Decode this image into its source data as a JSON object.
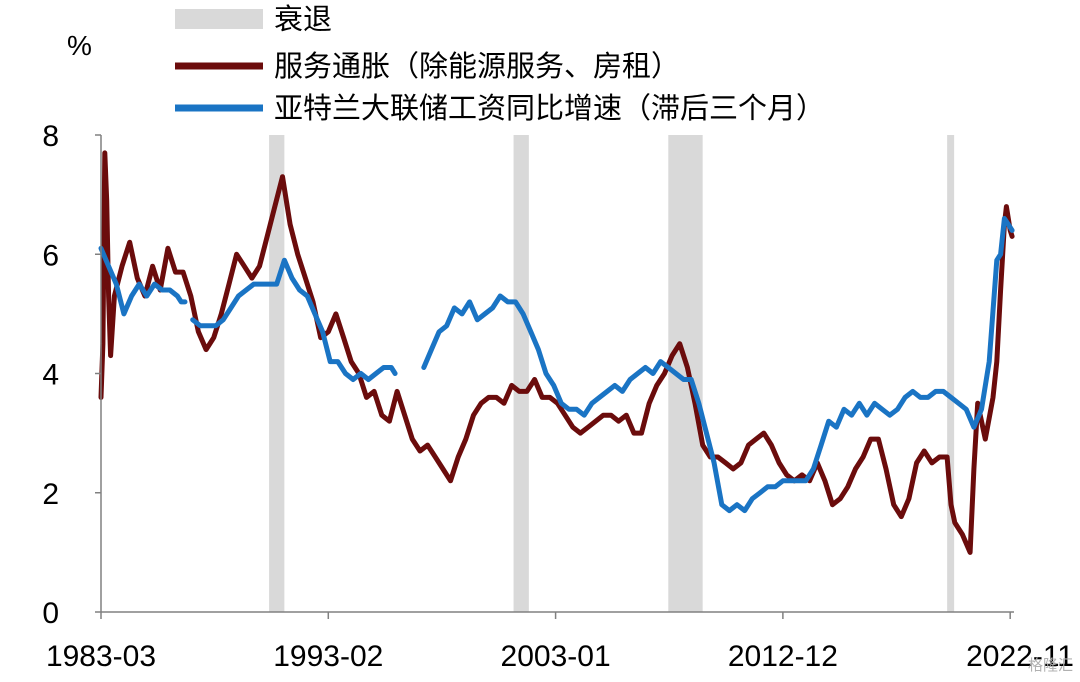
{
  "chart_data": {
    "type": "line",
    "ylabel": "%",
    "ylim": [
      0,
      8
    ],
    "yticks": [
      0,
      2,
      4,
      6,
      8
    ],
    "xlim": [
      "1983-03",
      "2023-01"
    ],
    "xticks": [
      "1983-03",
      "1993-02",
      "2003-01",
      "2012-12",
      "2022-11"
    ],
    "grid": false,
    "legend_position": "top",
    "legend": [
      {
        "key": "recession",
        "label": "衰退",
        "color": "#d9d9d9",
        "kind": "band"
      },
      {
        "key": "services",
        "label": "服务通胀（除能源服务、房租）",
        "color": "#6b0c0c",
        "kind": "line"
      },
      {
        "key": "wages",
        "label": "亚特兰大联储工资同比增速（滞后三个月）",
        "color": "#1a74c4",
        "kind": "line"
      }
    ],
    "recessions": [
      [
        "1990-07",
        "1991-03"
      ],
      [
        "2001-03",
        "2001-11"
      ],
      [
        "2007-12",
        "2009-06"
      ],
      [
        "2020-02",
        "2020-04"
      ]
    ],
    "series": [
      {
        "name": "服务通胀（除能源服务、房租）",
        "color": "#6b0c0c",
        "points": [
          [
            "1983-03",
            3.6
          ],
          [
            "1983-04",
            4.5
          ],
          [
            "1983-05",
            7.7
          ],
          [
            "1983-06",
            6.9
          ],
          [
            "1983-07",
            5.3
          ],
          [
            "1983-08",
            4.3
          ],
          [
            "1983-10",
            5.3
          ],
          [
            "1984-02",
            5.8
          ],
          [
            "1984-06",
            6.2
          ],
          [
            "1984-10",
            5.6
          ],
          [
            "1985-02",
            5.3
          ],
          [
            "1985-06",
            5.8
          ],
          [
            "1985-10",
            5.4
          ],
          [
            "1986-02",
            6.1
          ],
          [
            "1986-06",
            5.7
          ],
          [
            "1986-10",
            5.7
          ],
          [
            "1987-02",
            5.3
          ],
          [
            "1987-06",
            4.7
          ],
          [
            "1987-10",
            4.4
          ],
          [
            "1988-02",
            4.6
          ],
          [
            "1988-06",
            5.0
          ],
          [
            "1988-10",
            5.5
          ],
          [
            "1989-02",
            6.0
          ],
          [
            "1989-06",
            5.8
          ],
          [
            "1989-10",
            5.6
          ],
          [
            "1990-02",
            5.8
          ],
          [
            "1990-06",
            6.3
          ],
          [
            "1990-10",
            6.8
          ],
          [
            "1991-02",
            7.3
          ],
          [
            "1991-06",
            6.5
          ],
          [
            "1991-10",
            6.0
          ],
          [
            "1992-02",
            5.6
          ],
          [
            "1992-06",
            5.2
          ],
          [
            "1992-10",
            4.6
          ],
          [
            "1993-02",
            4.7
          ],
          [
            "1993-06",
            5.0
          ],
          [
            "1993-10",
            4.6
          ],
          [
            "1994-02",
            4.2
          ],
          [
            "1994-06",
            4.0
          ],
          [
            "1994-10",
            3.6
          ],
          [
            "1995-02",
            3.7
          ],
          [
            "1995-06",
            3.3
          ],
          [
            "1995-10",
            3.2
          ],
          [
            "1996-02",
            3.7
          ],
          [
            "1996-06",
            3.3
          ],
          [
            "1996-10",
            2.9
          ],
          [
            "1997-02",
            2.7
          ],
          [
            "1997-06",
            2.8
          ],
          [
            "1997-10",
            2.6
          ],
          [
            "1998-02",
            2.4
          ],
          [
            "1998-06",
            2.2
          ],
          [
            "1998-10",
            2.6
          ],
          [
            "1999-02",
            2.9
          ],
          [
            "1999-06",
            3.3
          ],
          [
            "1999-10",
            3.5
          ],
          [
            "2000-02",
            3.6
          ],
          [
            "2000-06",
            3.6
          ],
          [
            "2000-10",
            3.5
          ],
          [
            "2001-02",
            3.8
          ],
          [
            "2001-06",
            3.7
          ],
          [
            "2001-10",
            3.7
          ],
          [
            "2002-02",
            3.9
          ],
          [
            "2002-06",
            3.6
          ],
          [
            "2002-10",
            3.6
          ],
          [
            "2003-02",
            3.5
          ],
          [
            "2003-06",
            3.3
          ],
          [
            "2003-10",
            3.1
          ],
          [
            "2004-02",
            3.0
          ],
          [
            "2004-06",
            3.1
          ],
          [
            "2004-10",
            3.2
          ],
          [
            "2005-02",
            3.3
          ],
          [
            "2005-06",
            3.3
          ],
          [
            "2005-10",
            3.2
          ],
          [
            "2006-02",
            3.3
          ],
          [
            "2006-06",
            3.0
          ],
          [
            "2006-10",
            3.0
          ],
          [
            "2007-02",
            3.5
          ],
          [
            "2007-06",
            3.8
          ],
          [
            "2007-10",
            4.0
          ],
          [
            "2008-02",
            4.3
          ],
          [
            "2008-06",
            4.5
          ],
          [
            "2008-10",
            4.1
          ],
          [
            "2009-02",
            3.5
          ],
          [
            "2009-06",
            2.8
          ],
          [
            "2009-10",
            2.6
          ],
          [
            "2010-02",
            2.6
          ],
          [
            "2010-06",
            2.5
          ],
          [
            "2010-10",
            2.4
          ],
          [
            "2011-02",
            2.5
          ],
          [
            "2011-06",
            2.8
          ],
          [
            "2011-10",
            2.9
          ],
          [
            "2012-02",
            3.0
          ],
          [
            "2012-06",
            2.8
          ],
          [
            "2012-10",
            2.5
          ],
          [
            "2013-02",
            2.3
          ],
          [
            "2013-06",
            2.2
          ],
          [
            "2013-10",
            2.3
          ],
          [
            "2014-02",
            2.2
          ],
          [
            "2014-06",
            2.5
          ],
          [
            "2014-10",
            2.2
          ],
          [
            "2015-02",
            1.8
          ],
          [
            "2015-06",
            1.9
          ],
          [
            "2015-10",
            2.1
          ],
          [
            "2016-02",
            2.4
          ],
          [
            "2016-06",
            2.6
          ],
          [
            "2016-10",
            2.9
          ],
          [
            "2017-02",
            2.9
          ],
          [
            "2017-06",
            2.4
          ],
          [
            "2017-10",
            1.8
          ],
          [
            "2018-02",
            1.6
          ],
          [
            "2018-06",
            1.9
          ],
          [
            "2018-10",
            2.5
          ],
          [
            "2019-02",
            2.7
          ],
          [
            "2019-06",
            2.5
          ],
          [
            "2019-10",
            2.6
          ],
          [
            "2020-02",
            2.6
          ],
          [
            "2020-04",
            1.8
          ],
          [
            "2020-06",
            1.5
          ],
          [
            "2020-10",
            1.3
          ],
          [
            "2021-02",
            1.0
          ],
          [
            "2021-04",
            2.4
          ],
          [
            "2021-06",
            3.5
          ],
          [
            "2021-10",
            2.9
          ],
          [
            "2022-02",
            3.6
          ],
          [
            "2022-04",
            4.2
          ],
          [
            "2022-06",
            5.4
          ],
          [
            "2022-08",
            6.5
          ],
          [
            "2022-09",
            6.8
          ],
          [
            "2022-11",
            6.4
          ],
          [
            "2022-12",
            6.3
          ]
        ]
      },
      {
        "name": "亚特兰大联储工资同比增速（滞后三个月）",
        "color": "#1a74c4",
        "segments": [
          [
            [
              "1983-03",
              6.1
            ],
            [
              "1983-07",
              5.8
            ],
            [
              "1983-11",
              5.5
            ],
            [
              "1984-03",
              5.0
            ],
            [
              "1984-07",
              5.3
            ],
            [
              "1984-11",
              5.5
            ],
            [
              "1985-03",
              5.3
            ],
            [
              "1985-07",
              5.5
            ],
            [
              "1985-11",
              5.4
            ],
            [
              "1986-03",
              5.4
            ],
            [
              "1986-07",
              5.3
            ],
            [
              "1986-09",
              5.2
            ],
            [
              "1986-11",
              5.2
            ]
          ],
          [
            [
              "1987-03",
              4.9
            ],
            [
              "1987-07",
              4.8
            ],
            [
              "1987-11",
              4.8
            ],
            [
              "1988-03",
              4.8
            ],
            [
              "1988-07",
              4.9
            ],
            [
              "1988-11",
              5.1
            ],
            [
              "1989-03",
              5.3
            ],
            [
              "1989-07",
              5.4
            ],
            [
              "1989-11",
              5.5
            ],
            [
              "1990-03",
              5.5
            ],
            [
              "1990-07",
              5.5
            ],
            [
              "1990-11",
              5.5
            ],
            [
              "1991-03",
              5.9
            ],
            [
              "1991-07",
              5.6
            ],
            [
              "1991-11",
              5.4
            ],
            [
              "1992-03",
              5.3
            ],
            [
              "1992-07",
              5.0
            ],
            [
              "1992-11",
              4.7
            ],
            [
              "1993-03",
              4.2
            ],
            [
              "1993-07",
              4.2
            ],
            [
              "1993-11",
              4.0
            ],
            [
              "1994-03",
              3.9
            ],
            [
              "1994-07",
              4.0
            ],
            [
              "1994-11",
              3.9
            ],
            [
              "1995-03",
              4.0
            ],
            [
              "1995-07",
              4.1
            ],
            [
              "1995-11",
              4.1
            ],
            [
              "1996-01",
              4.0
            ]
          ],
          [
            [
              "1997-04",
              4.1
            ],
            [
              "1997-08",
              4.4
            ],
            [
              "1997-12",
              4.7
            ],
            [
              "1998-04",
              4.8
            ],
            [
              "1998-08",
              5.1
            ],
            [
              "1998-12",
              5.0
            ],
            [
              "1999-04",
              5.2
            ],
            [
              "1999-08",
              4.9
            ],
            [
              "1999-12",
              5.0
            ],
            [
              "2000-04",
              5.1
            ],
            [
              "2000-08",
              5.3
            ],
            [
              "2000-12",
              5.2
            ],
            [
              "2001-04",
              5.2
            ],
            [
              "2001-08",
              5.0
            ],
            [
              "2001-12",
              4.7
            ],
            [
              "2002-04",
              4.4
            ],
            [
              "2002-08",
              4.0
            ],
            [
              "2002-12",
              3.8
            ],
            [
              "2003-04",
              3.5
            ],
            [
              "2003-08",
              3.4
            ],
            [
              "2003-12",
              3.4
            ],
            [
              "2004-04",
              3.3
            ],
            [
              "2004-08",
              3.5
            ],
            [
              "2004-12",
              3.6
            ],
            [
              "2005-04",
              3.7
            ],
            [
              "2005-08",
              3.8
            ],
            [
              "2005-12",
              3.7
            ],
            [
              "2006-04",
              3.9
            ],
            [
              "2006-08",
              4.0
            ],
            [
              "2006-12",
              4.1
            ],
            [
              "2007-04",
              4.0
            ],
            [
              "2007-08",
              4.2
            ],
            [
              "2007-12",
              4.1
            ],
            [
              "2008-04",
              4.0
            ],
            [
              "2008-08",
              3.9
            ],
            [
              "2008-12",
              3.9
            ],
            [
              "2009-04",
              3.5
            ],
            [
              "2009-08",
              3.0
            ],
            [
              "2009-12",
              2.5
            ],
            [
              "2010-04",
              1.8
            ],
            [
              "2010-08",
              1.7
            ],
            [
              "2010-12",
              1.8
            ],
            [
              "2011-04",
              1.7
            ],
            [
              "2011-08",
              1.9
            ],
            [
              "2011-12",
              2.0
            ],
            [
              "2012-04",
              2.1
            ],
            [
              "2012-08",
              2.1
            ],
            [
              "2012-12",
              2.2
            ],
            [
              "2013-04",
              2.2
            ],
            [
              "2013-08",
              2.2
            ],
            [
              "2013-12",
              2.2
            ],
            [
              "2014-04",
              2.4
            ],
            [
              "2014-08",
              2.8
            ],
            [
              "2014-12",
              3.2
            ],
            [
              "2015-04",
              3.1
            ],
            [
              "2015-08",
              3.4
            ],
            [
              "2015-12",
              3.3
            ],
            [
              "2016-04",
              3.5
            ],
            [
              "2016-08",
              3.3
            ],
            [
              "2016-12",
              3.5
            ],
            [
              "2017-04",
              3.4
            ],
            [
              "2017-08",
              3.3
            ],
            [
              "2017-12",
              3.4
            ],
            [
              "2018-04",
              3.6
            ],
            [
              "2018-08",
              3.7
            ],
            [
              "2018-12",
              3.6
            ],
            [
              "2019-04",
              3.6
            ],
            [
              "2019-08",
              3.7
            ],
            [
              "2019-12",
              3.7
            ],
            [
              "2020-04",
              3.6
            ],
            [
              "2020-08",
              3.5
            ],
            [
              "2020-12",
              3.4
            ],
            [
              "2021-04",
              3.1
            ],
            [
              "2021-08",
              3.4
            ],
            [
              "2021-12",
              4.2
            ],
            [
              "2022-04",
              5.9
            ],
            [
              "2022-06",
              6.0
            ],
            [
              "2022-08",
              6.6
            ],
            [
              "2022-10",
              6.5
            ],
            [
              "2022-12",
              6.4
            ]
          ]
        ]
      }
    ]
  },
  "watermark": "格隆汇"
}
